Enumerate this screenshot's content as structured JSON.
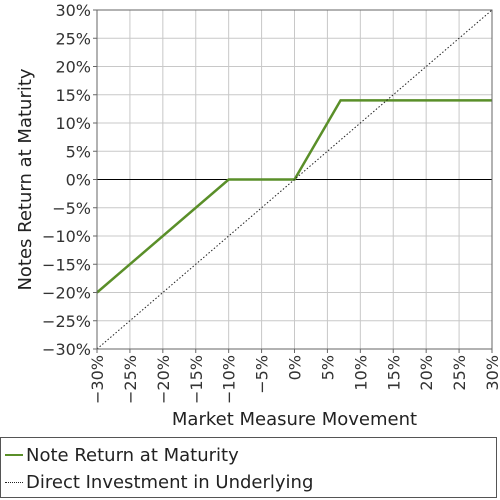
{
  "chart_data": {
    "type": "line",
    "xlabel": "Market Measure Movement",
    "ylabel": "Notes Return at Maturity",
    "xlim": [
      -30,
      30
    ],
    "ylim": [
      -30,
      30
    ],
    "xticks": [
      -30,
      -25,
      -20,
      -15,
      -10,
      -5,
      0,
      5,
      10,
      15,
      20,
      25,
      30
    ],
    "yticks": [
      -30,
      -25,
      -20,
      -15,
      -10,
      -5,
      0,
      5,
      10,
      15,
      20,
      25,
      30
    ],
    "tick_format": "percent",
    "grid": true,
    "zero_line": true,
    "legend_position": "bottom",
    "series": [
      {
        "name": "Note Return at Maturity",
        "color": "#5a8f29",
        "style": "solid",
        "x": [
          -30,
          -10,
          0,
          7,
          30
        ],
        "y": [
          -20,
          0,
          0,
          14,
          14
        ]
      },
      {
        "name": "Direct Investment in Underlying",
        "color": "#222222",
        "style": "dotted",
        "x": [
          -30,
          30
        ],
        "y": [
          -30,
          30
        ]
      }
    ]
  }
}
